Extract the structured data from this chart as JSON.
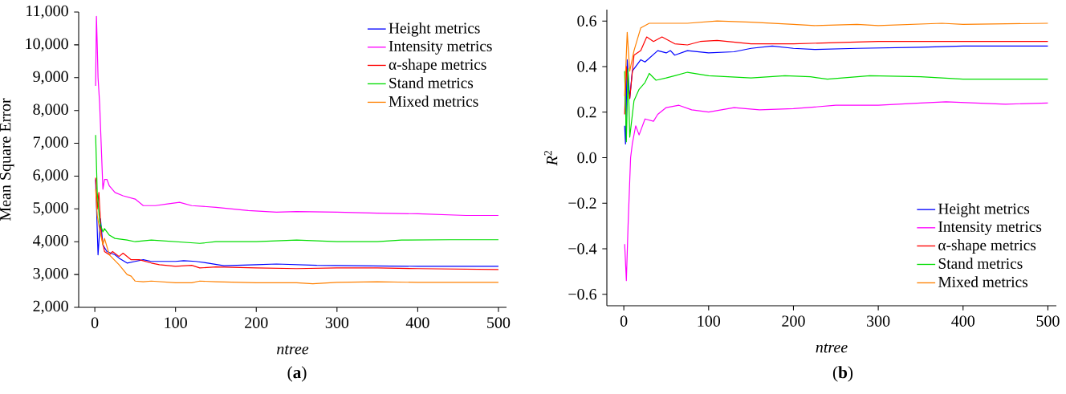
{
  "chart_data": [
    {
      "type": "line",
      "xlabel": "ntree",
      "ylabel": "Mean Square Error",
      "xlim": [
        -20,
        510
      ],
      "ylim": [
        2000,
        11000
      ],
      "xticks": [
        0,
        100,
        200,
        300,
        400,
        500
      ],
      "yticks": [
        {
          "value": 2000,
          "label": "2,000"
        },
        {
          "value": 3000,
          "label": "3,000"
        },
        {
          "value": 4000,
          "label": "4,000"
        },
        {
          "value": 5000,
          "label": "5,000"
        },
        {
          "value": 6000,
          "label": "6,000"
        },
        {
          "value": 7000,
          "label": "7,000"
        },
        {
          "value": 8000,
          "label": "8,000"
        },
        {
          "value": 9000,
          "label": "9,000"
        },
        {
          "value": 10000,
          "label": "10,000"
        },
        {
          "value": 11000,
          "label": "11,000"
        }
      ],
      "legend": "top right",
      "grid": false,
      "line_style": "solid",
      "marker": "none",
      "annotations": [
        "(**a**)"
      ],
      "series": [
        {
          "name": "Height metrics",
          "color": "#0000ff",
          "x": [
            1,
            4,
            7,
            10,
            15,
            20,
            25,
            30,
            40,
            50,
            60,
            70,
            100,
            110,
            125,
            140,
            160,
            200,
            225,
            275,
            400,
            500
          ],
          "values": [
            5900,
            3600,
            4700,
            3900,
            3700,
            3650,
            3600,
            3500,
            3350,
            3400,
            3450,
            3400,
            3400,
            3420,
            3400,
            3350,
            3270,
            3300,
            3320,
            3280,
            3250,
            3250
          ]
        },
        {
          "name": "Intensity metrics",
          "color": "#ff00ff",
          "x": [
            1,
            2,
            3,
            4,
            6,
            10,
            12,
            15,
            18,
            25,
            35,
            50,
            60,
            75,
            90,
            105,
            120,
            150,
            190,
            225,
            250,
            300,
            350,
            400,
            460,
            500
          ],
          "values": [
            8750,
            10870,
            10000,
            9000,
            8200,
            5600,
            5900,
            5900,
            5700,
            5500,
            5400,
            5300,
            5100,
            5100,
            5150,
            5200,
            5100,
            5050,
            4950,
            4900,
            4920,
            4900,
            4870,
            4850,
            4800,
            4800
          ]
        },
        {
          "name": "α-shape metrics",
          "color": "#ff0000",
          "x": [
            1,
            3,
            5,
            8,
            12,
            18,
            22,
            30,
            35,
            45,
            55,
            70,
            80,
            100,
            120,
            130,
            150,
            200,
            250,
            300,
            350,
            400,
            500
          ],
          "values": [
            5950,
            5000,
            5500,
            4200,
            3700,
            3600,
            3700,
            3550,
            3650,
            3450,
            3450,
            3350,
            3300,
            3250,
            3280,
            3200,
            3230,
            3200,
            3180,
            3200,
            3200,
            3180,
            3150
          ]
        },
        {
          "name": "Stand metrics",
          "color": "#00dd00",
          "x": [
            1,
            3,
            6,
            10,
            12,
            18,
            25,
            40,
            50,
            70,
            100,
            130,
            150,
            200,
            250,
            300,
            350,
            380,
            440,
            500
          ],
          "values": [
            7250,
            5500,
            4600,
            4300,
            4400,
            4200,
            4100,
            4050,
            4000,
            4050,
            4000,
            3950,
            4000,
            4000,
            4050,
            4000,
            4000,
            4050,
            4060,
            4060
          ]
        },
        {
          "name": "Mixed metrics",
          "color": "#ff8000",
          "x": [
            1,
            3,
            5,
            10,
            12,
            18,
            30,
            40,
            45,
            50,
            60,
            70,
            100,
            120,
            130,
            150,
            200,
            250,
            270,
            300,
            350,
            400,
            500
          ],
          "values": [
            5600,
            4800,
            4500,
            3900,
            4100,
            3600,
            3300,
            3000,
            2950,
            2800,
            2780,
            2800,
            2750,
            2750,
            2800,
            2780,
            2750,
            2750,
            2720,
            2760,
            2780,
            2760,
            2760
          ]
        }
      ]
    },
    {
      "type": "line",
      "xlabel": "ntree",
      "ylabel": "*R*$^{2}$",
      "xlim": [
        -20,
        510
      ],
      "ylim": [
        -0.65,
        0.65
      ],
      "xticks": [
        0,
        100,
        200,
        300,
        400,
        500
      ],
      "yticks": [
        {
          "value": -0.6,
          "label": "−0.6"
        },
        {
          "value": -0.4,
          "label": "−0.4"
        },
        {
          "value": -0.2,
          "label": "−0.2"
        },
        {
          "value": 0,
          "label": "0.0"
        },
        {
          "value": 0.2,
          "label": "0.2"
        },
        {
          "value": 0.4,
          "label": "0.4"
        },
        {
          "value": 0.6,
          "label": "0.6"
        }
      ],
      "legend": "bottom right",
      "grid": false,
      "line_style": "solid",
      "marker": "none",
      "annotations": [
        "(**b**)"
      ],
      "series": [
        {
          "name": "Height metrics",
          "color": "#0000ff",
          "x": [
            1,
            2,
            4,
            7,
            10,
            20,
            25,
            40,
            50,
            55,
            60,
            75,
            100,
            130,
            150,
            175,
            200,
            225,
            275,
            350,
            400,
            500
          ],
          "values": [
            0.14,
            0.06,
            0.43,
            0.26,
            0.38,
            0.43,
            0.42,
            0.47,
            0.46,
            0.47,
            0.45,
            0.47,
            0.46,
            0.465,
            0.48,
            0.49,
            0.48,
            0.475,
            0.48,
            0.485,
            0.49,
            0.49
          ]
        },
        {
          "name": "Intensity metrics",
          "color": "#ff00ff",
          "x": [
            1,
            3,
            5,
            8,
            10,
            14,
            18,
            25,
            35,
            40,
            50,
            65,
            80,
            100,
            130,
            160,
            200,
            250,
            300,
            350,
            380,
            450,
            500
          ],
          "values": [
            -0.38,
            -0.54,
            -0.3,
            0.0,
            0.06,
            0.14,
            0.1,
            0.17,
            0.16,
            0.19,
            0.22,
            0.23,
            0.21,
            0.2,
            0.22,
            0.21,
            0.215,
            0.23,
            0.23,
            0.24,
            0.245,
            0.235,
            0.24
          ]
        },
        {
          "name": "α-shape metrics",
          "color": "#ff0000",
          "x": [
            1,
            3,
            5,
            7,
            12,
            20,
            27,
            35,
            45,
            60,
            75,
            90,
            110,
            150,
            200,
            250,
            300,
            400,
            500
          ],
          "values": [
            0.19,
            0.4,
            0.3,
            0.26,
            0.45,
            0.47,
            0.53,
            0.51,
            0.53,
            0.5,
            0.495,
            0.51,
            0.515,
            0.5,
            0.5,
            0.505,
            0.51,
            0.51,
            0.51
          ]
        },
        {
          "name": "Stand metrics",
          "color": "#00dd00",
          "x": [
            1,
            3,
            5,
            7,
            12,
            18,
            25,
            30,
            38,
            50,
            60,
            75,
            100,
            150,
            190,
            220,
            240,
            290,
            350,
            400,
            500
          ],
          "values": [
            0.38,
            0.07,
            0.39,
            0.09,
            0.25,
            0.3,
            0.33,
            0.37,
            0.34,
            0.35,
            0.36,
            0.375,
            0.36,
            0.35,
            0.36,
            0.355,
            0.345,
            0.36,
            0.355,
            0.345,
            0.345
          ]
        },
        {
          "name": "Mixed metrics",
          "color": "#ff8000",
          "x": [
            1,
            4,
            7,
            12,
            20,
            30,
            50,
            75,
            110,
            150,
            200,
            225,
            275,
            300,
            375,
            400,
            500
          ],
          "values": [
            0.27,
            0.55,
            0.38,
            0.47,
            0.57,
            0.59,
            0.59,
            0.59,
            0.6,
            0.595,
            0.585,
            0.58,
            0.585,
            0.58,
            0.59,
            0.585,
            0.59
          ]
        }
      ]
    }
  ]
}
